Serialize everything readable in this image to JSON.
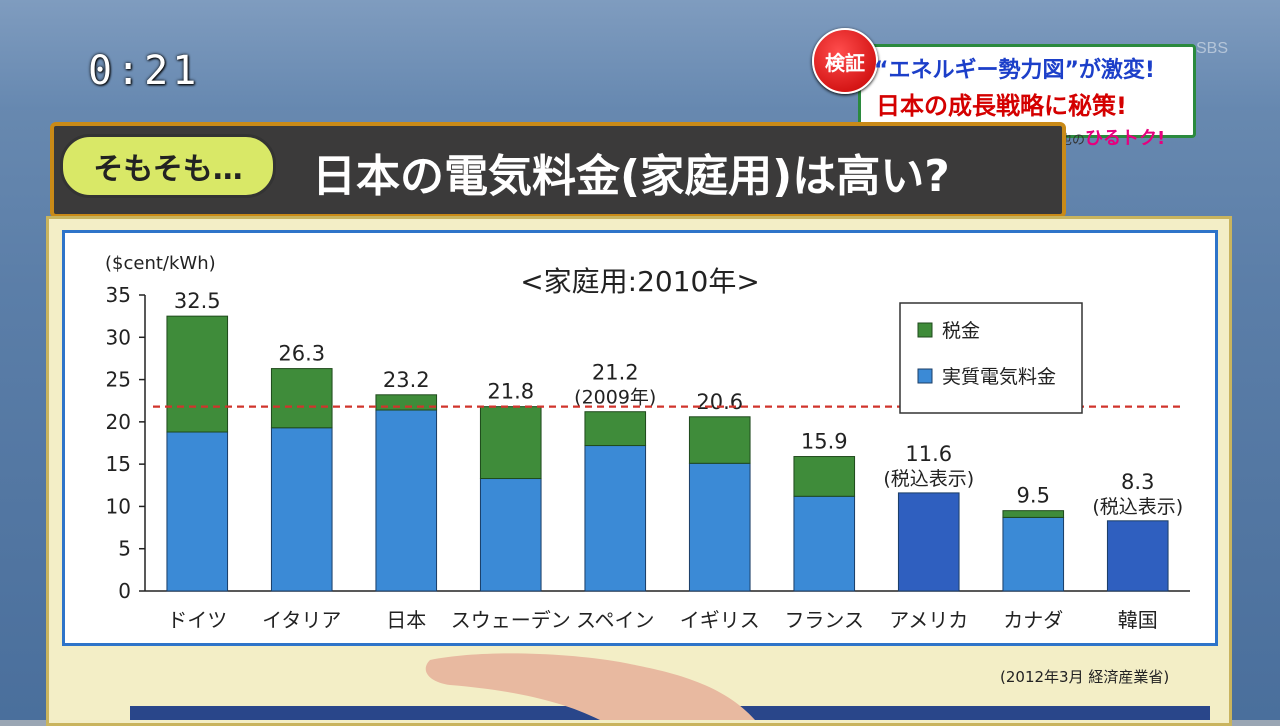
{
  "timer": "0:21",
  "channel_logo": "SBS",
  "caption": {
    "badge": "検証",
    "line1": "“エネルギー勢力図”が激変!",
    "line2": "日本の成長戦略に秘策!",
    "show_host": "斎藤哲也の",
    "show_name": "ひるトク!"
  },
  "banner": {
    "bubble": "そもそも…",
    "title": "日本の電気料金(家庭用)は高い?"
  },
  "source": "(2012年3月 経済産業省)",
  "colors": {
    "tax": "#3f8c3a",
    "base": "#3b8ad6",
    "tax_included": "#2f5fbf",
    "reference_line": "#d0342c"
  },
  "chart_data": {
    "type": "bar",
    "stacked": true,
    "title": "<家庭用:2010年>",
    "ylabel": "($cent/kWh)",
    "ylim": [
      0,
      35
    ],
    "yticks": [
      "0",
      "5",
      "10",
      "15",
      "20",
      "25",
      "30",
      "35"
    ],
    "categories": [
      "ドイツ",
      "イタリア",
      "日本",
      "スウェーデン",
      "スペイン",
      "イギリス",
      "フランス",
      "アメリカ",
      "カナダ",
      "韓国"
    ],
    "totals_labels": [
      "32.5",
      "26.3",
      "23.2",
      "21.8",
      "21.2",
      "20.6",
      "15.9",
      "11.6",
      "9.5",
      "8.3"
    ],
    "notes": [
      "",
      "",
      "",
      "",
      "(2009年)",
      "",
      "",
      "(税込表示)",
      "",
      "(税込表示)"
    ],
    "series": [
      {
        "name": "実質電気料金",
        "values": [
          18.8,
          19.3,
          21.4,
          13.3,
          17.2,
          15.1,
          11.2,
          11.6,
          8.7,
          8.3
        ]
      },
      {
        "name": "税金",
        "values": [
          13.7,
          7.0,
          1.8,
          8.5,
          4.0,
          5.5,
          4.7,
          0,
          0.8,
          0
        ]
      }
    ],
    "tax_included": [
      false,
      false,
      false,
      false,
      false,
      false,
      false,
      true,
      false,
      true
    ],
    "reference_line": 21.8,
    "legend_position": "top-right",
    "grid": false
  }
}
